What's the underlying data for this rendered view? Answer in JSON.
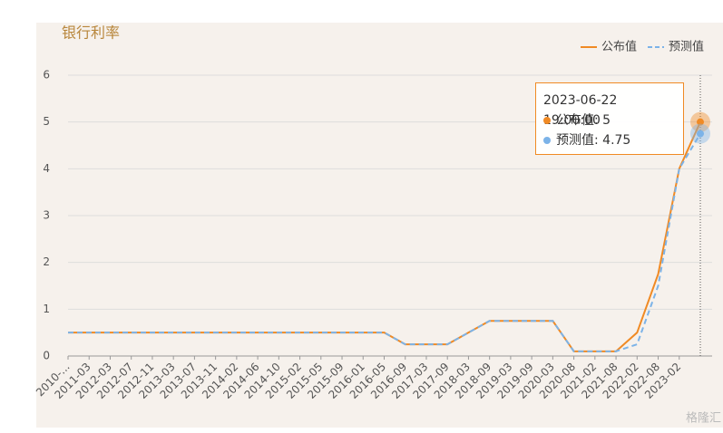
{
  "chart_data": {
    "type": "line",
    "title": "银行利率",
    "categories": [
      "2010-...",
      "2011-03",
      "2012-03",
      "2012-07",
      "2012-11",
      "2013-03",
      "2013-07",
      "2013-11",
      "2014-02",
      "2014-06",
      "2014-10",
      "2015-02",
      "2015-05",
      "2015-09",
      "2016-01",
      "2016-05",
      "2016-09",
      "2017-03",
      "2017-09",
      "2018-03",
      "2018-09",
      "2019-03",
      "2019-09",
      "2020-03",
      "2020-08",
      "2021-02",
      "2021-08",
      "2022-02",
      "2022-08",
      "2023-02",
      null
    ],
    "series": [
      {
        "name": "公布值",
        "color": "#f08a24",
        "dash": false,
        "values": [
          0.5,
          0.5,
          0.5,
          0.5,
          0.5,
          0.5,
          0.5,
          0.5,
          0.5,
          0.5,
          0.5,
          0.5,
          0.5,
          0.5,
          0.5,
          0.5,
          0.25,
          0.25,
          0.25,
          0.5,
          0.75,
          0.75,
          0.75,
          0.75,
          0.1,
          0.1,
          0.1,
          0.5,
          1.75,
          4,
          5
        ]
      },
      {
        "name": "预测值",
        "color": "#7cb3e8",
        "dash": true,
        "values": [
          0.5,
          0.5,
          0.5,
          0.5,
          0.5,
          0.5,
          0.5,
          0.5,
          0.5,
          0.5,
          0.5,
          0.5,
          0.5,
          0.5,
          0.5,
          0.5,
          0.25,
          0.25,
          0.25,
          0.5,
          0.75,
          0.75,
          0.75,
          0.75,
          0.1,
          0.1,
          0.1,
          0.25,
          1.5,
          4,
          4.75
        ]
      }
    ],
    "ylim": [
      0,
      6
    ],
    "yticks": [
      0,
      1,
      2,
      3,
      4,
      5,
      6
    ],
    "grid": true,
    "legend": "top-right",
    "tooltip": {
      "label": "2023-06-22 19:00:00"
    },
    "watermark": "格隆汇"
  }
}
